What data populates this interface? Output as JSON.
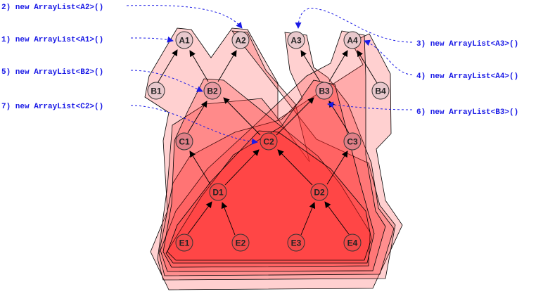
{
  "nodes": {
    "A1": "A1",
    "A2": "A2",
    "A3": "A3",
    "A4": "A4",
    "B1": "B1",
    "B2": "B2",
    "B3": "B3",
    "B4": "B4",
    "C1": "C1",
    "C2": "C2",
    "C3": "C3",
    "D1": "D1",
    "D2": "D2",
    "E1": "E1",
    "E2": "E2",
    "E3": "E3",
    "E4": "E4"
  },
  "calls": [
    {
      "id": "call-a2",
      "text": "2) new ArrayList<A2>()",
      "target": "A2"
    },
    {
      "id": "call-a1",
      "text": "1) new ArrayList<A1>()",
      "target": "A1"
    },
    {
      "id": "call-b2",
      "text": "5) new ArrayList<B2>()",
      "target": "B2"
    },
    {
      "id": "call-c2",
      "text": "7) new ArrayList<C2>()",
      "target": "C2"
    },
    {
      "id": "call-a3",
      "text": "3) new ArrayList<A3>()",
      "target": "A3"
    },
    {
      "id": "call-a4",
      "text": "4) new ArrayList<A4>()",
      "target": "A4"
    },
    {
      "id": "call-b3",
      "text": "6) new ArrayList<B3>()",
      "target": "B3"
    }
  ],
  "colors": {
    "region_fill": "#ff2a2a",
    "region_stroke": "#000000",
    "node_fill": "#e8c8cc",
    "node_stroke": "#333333",
    "arrow": "#000000",
    "call_text": "#1a1ae6",
    "call_arrow": "#1a1ae6"
  }
}
